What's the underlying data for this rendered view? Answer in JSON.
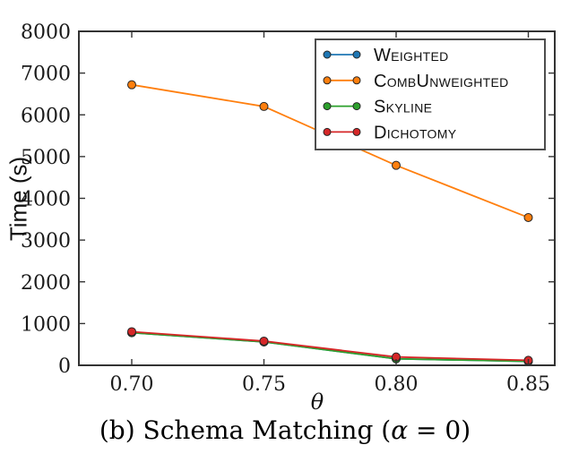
{
  "figure": {
    "ylabel": "Time (s)",
    "xlabel": "θ"
  },
  "caption": {
    "prefix": "(b) Schema Matching (",
    "alpha": "α",
    "suffix": " = 0)"
  },
  "colors": {
    "axis": "#333333",
    "tick_text": "#1a1a1a",
    "legend_border": "#4d4d4d",
    "marker_edge": "#262626",
    "background": "#ffffff"
  },
  "chart_data": {
    "type": "line",
    "x": [
      0.7,
      0.75,
      0.8,
      0.85
    ],
    "x_tick_labels": [
      "0.70",
      "0.75",
      "0.80",
      "0.85"
    ],
    "y_ticks": [
      0,
      1000,
      2000,
      3000,
      4000,
      5000,
      6000,
      7000,
      8000
    ],
    "y_tick_labels": [
      "0",
      "1000",
      "2000",
      "3000",
      "4000",
      "5000",
      "6000",
      "7000",
      "8000"
    ],
    "xlim": [
      0.68,
      0.86
    ],
    "ylim": [
      0,
      8000
    ],
    "xlabel": "θ",
    "ylabel": "Time (s)",
    "title": "",
    "grid": false,
    "legend_position": "upper right",
    "series": [
      {
        "name": "Weighted",
        "color": "#1f77b4",
        "values": [
          780,
          560,
          155,
          95
        ]
      },
      {
        "name": "CombUnweighted",
        "color": "#ff7f0e",
        "values": [
          6720,
          6200,
          4790,
          3540
        ]
      },
      {
        "name": "Skyline",
        "color": "#2ca02c",
        "values": [
          780,
          560,
          155,
          95
        ]
      },
      {
        "name": "Dichotomy",
        "color": "#d62728",
        "values": [
          805,
          580,
          200,
          120
        ]
      }
    ]
  }
}
